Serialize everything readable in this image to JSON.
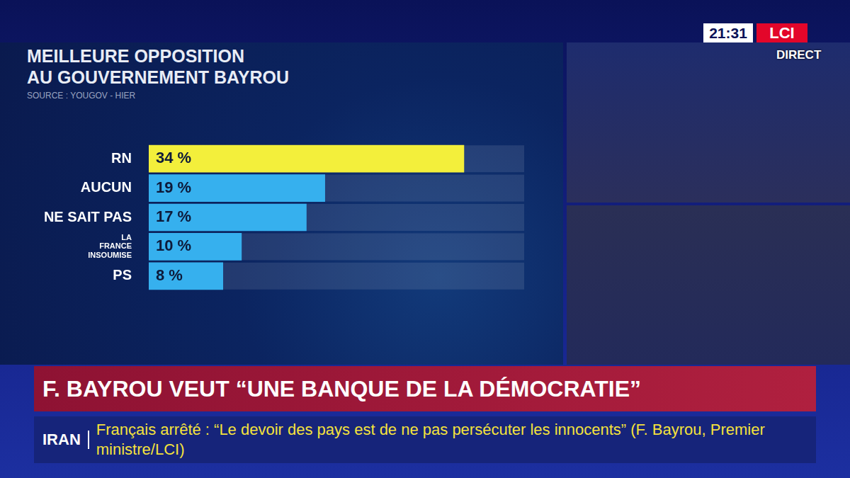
{
  "header": {
    "time": "21:31",
    "channel": "LCI",
    "live": "DIRECT"
  },
  "chart_data": {
    "type": "bar",
    "orientation": "horizontal",
    "title": "MEILLEURE OPPOSITION AU GOUVERNEMENT BAYROU",
    "subtitle": "SOURCE : YOUGOV - HIER",
    "categories": [
      "RN",
      "AUCUN",
      "NE SAIT PAS",
      "LA FRANCE INSOUMISE",
      "PS"
    ],
    "values": [
      34,
      19,
      17,
      10,
      8
    ],
    "value_labels": [
      "34 %",
      "19 %",
      "17 %",
      "10 %",
      "8 %"
    ],
    "colors": [
      "#f3ef3b",
      "#36b0ee",
      "#36b0ee",
      "#36b0ee",
      "#36b0ee"
    ],
    "xlim": [
      0,
      40.5
    ],
    "grid": false,
    "data_labels": true,
    "tick_labels": "y"
  },
  "banner": {
    "headline": "F. BAYROU VEUT “UNE BANQUE DE LA DÉMOCRATIE”",
    "ticker": {
      "label": "IRAN",
      "text": "Français arrêté : “Le devoir des pays est de ne pas persécuter les innocents” (F. Bayrou, Premier ministre/LCI)"
    }
  }
}
